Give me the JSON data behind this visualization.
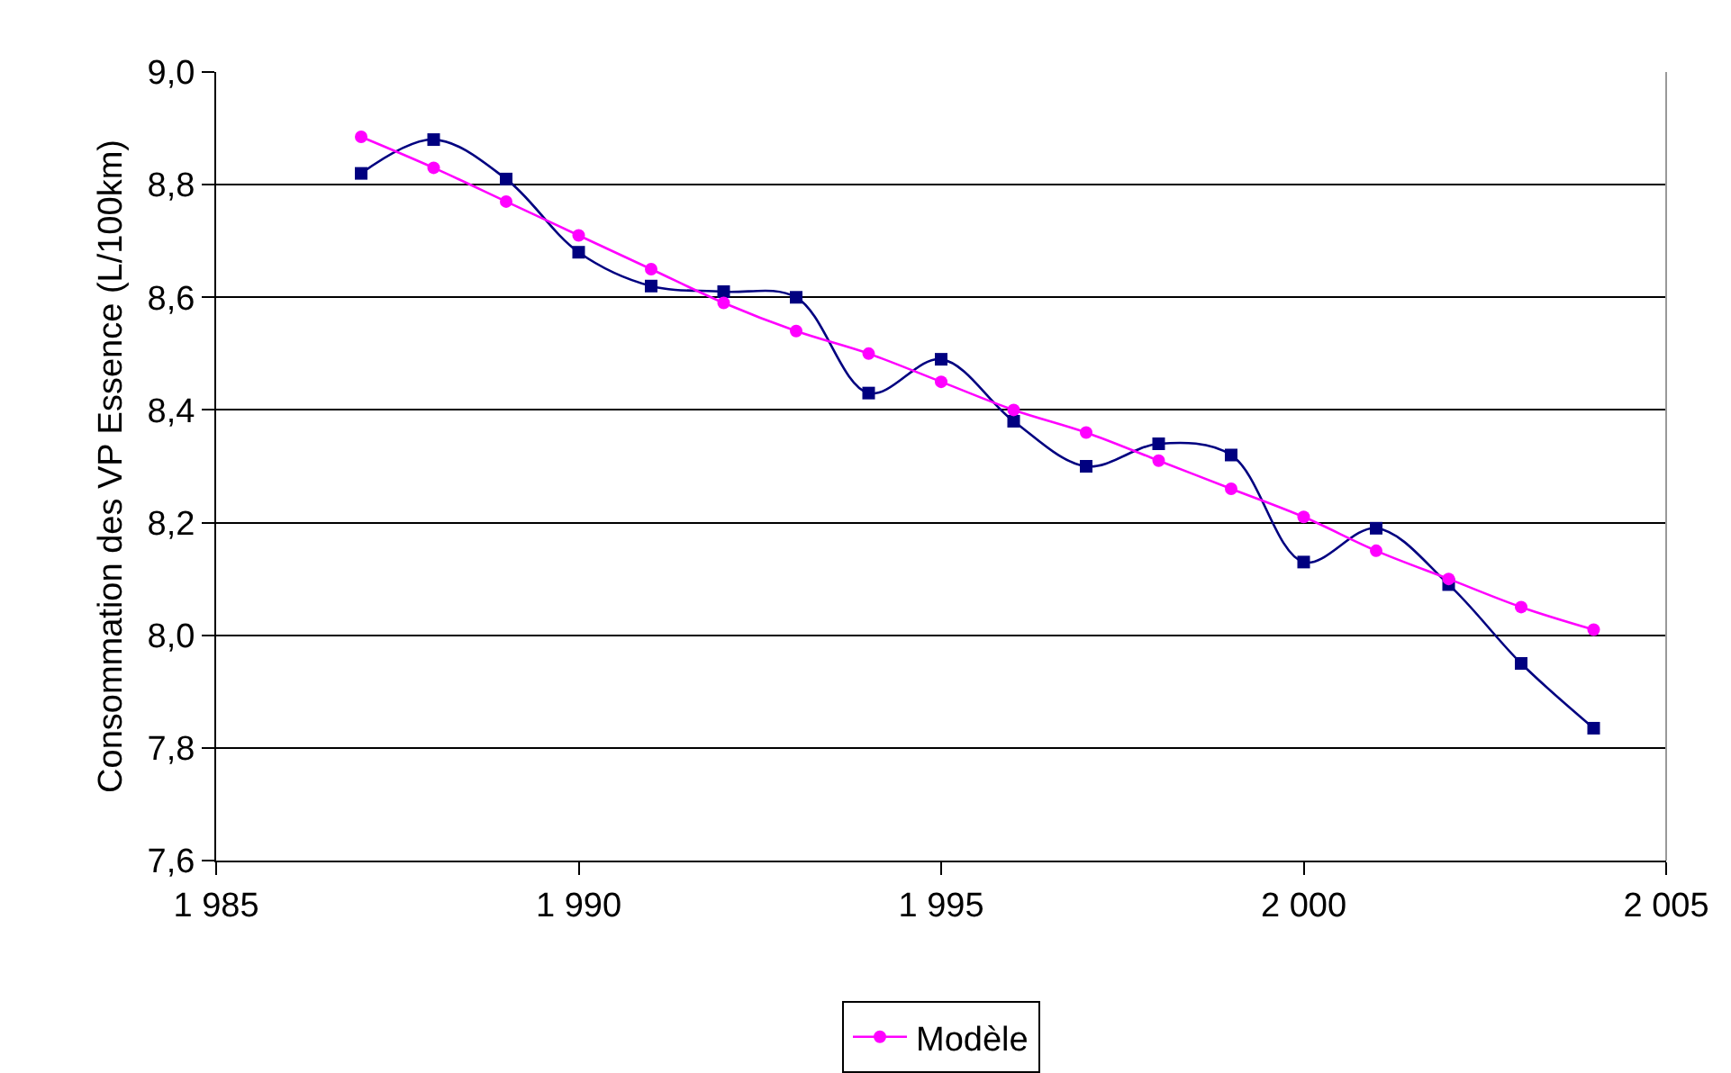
{
  "chart_data": {
    "type": "line",
    "ylabel": "Consommation des VP Essence (L/100km)",
    "x": [
      1987,
      1988,
      1989,
      1990,
      1991,
      1992,
      1993,
      1994,
      1995,
      1996,
      1997,
      1998,
      1999,
      2000,
      2001,
      2002,
      2003,
      2004
    ],
    "series": [
      {
        "color": "#000080",
        "marker": "square",
        "values": [
          8.82,
          8.88,
          8.81,
          8.68,
          8.62,
          8.61,
          8.6,
          8.43,
          8.49,
          8.38,
          8.3,
          8.34,
          8.32,
          8.13,
          8.19,
          8.09,
          7.95,
          7.835
        ]
      },
      {
        "name": "Modèle",
        "color": "#ff00ff",
        "marker": "circle",
        "values": [
          8.885,
          8.83,
          8.77,
          8.71,
          8.65,
          8.59,
          8.54,
          8.5,
          8.45,
          8.4,
          8.36,
          8.31,
          8.26,
          8.21,
          8.15,
          8.1,
          8.05,
          8.01
        ]
      }
    ],
    "xlim": [
      1985,
      2005
    ],
    "xticks": [
      {
        "value": 1985,
        "label": "1 985"
      },
      {
        "value": 1990,
        "label": "1 990"
      },
      {
        "value": 1995,
        "label": "1 995"
      },
      {
        "value": 2000,
        "label": "2 000"
      },
      {
        "value": 2005,
        "label": "2 005"
      }
    ],
    "ylim": [
      7.6,
      9.0
    ],
    "yticks": [
      {
        "value": 7.6,
        "label": "7,6"
      },
      {
        "value": 7.8,
        "label": "7,8"
      },
      {
        "value": 8.0,
        "label": "8,0"
      },
      {
        "value": 8.2,
        "label": "8,2"
      },
      {
        "value": 8.4,
        "label": "8,4"
      },
      {
        "value": 8.6,
        "label": "8,6"
      },
      {
        "value": 8.8,
        "label": "8,8"
      },
      {
        "value": 9.0,
        "label": "9,0"
      }
    ],
    "grid": "y",
    "legend": "bottom"
  }
}
